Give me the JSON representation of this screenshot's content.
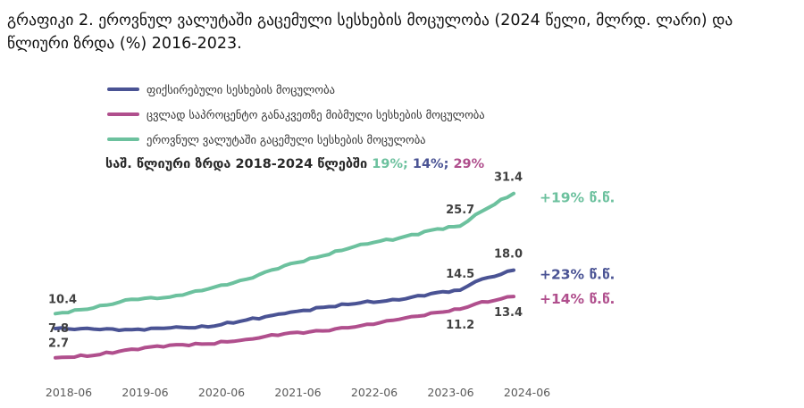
{
  "title": "გრაფიკი 2. ეროვნულ ვალუტაში გაცემული სესხების მოცულობა (2024 წელი, მლრდ. ლარი) და წლიური ზრდა (%) 2016-2023.",
  "cagr": {
    "prefix": "საშ. წლიური ზრდა 2018-2024 წლებში",
    "values": [
      "19%;",
      "14%;",
      "29%"
    ],
    "colors": [
      "#6cc19e",
      "#4a5394",
      "#b04f8d"
    ]
  },
  "chart_data": {
    "type": "line",
    "title": "",
    "xlabel": "",
    "ylabel": "",
    "x_ticks": [
      "2018-06",
      "2019-06",
      "2020-06",
      "2021-06",
      "2022-06",
      "2023-06",
      "2024-06"
    ],
    "x_range": [
      2018.5,
      2024.5
    ],
    "ylim": [
      0,
      34
    ],
    "series": [
      {
        "name": "ფიქსირებული სესხების მოცულობა",
        "color": "#4a5394",
        "x": [
          2018.5,
          2019.0,
          2019.5,
          2020.0,
          2020.5,
          2021.0,
          2021.5,
          2022.0,
          2022.5,
          2023.0,
          2023.5,
          2023.8,
          2024.0,
          2024.5
        ],
        "values": [
          7.8,
          7.7,
          7.6,
          7.9,
          8.1,
          9.3,
          10.4,
          11.5,
          12.3,
          12.8,
          14.1,
          14.5,
          16.0,
          18.0
        ],
        "labels": [
          {
            "x": 2018.5,
            "text": "7.8",
            "pos": "below-left"
          },
          {
            "x": 2023.8,
            "text": "14.5",
            "pos": "above"
          },
          {
            "x": 2024.5,
            "text": "18.0",
            "pos": "above"
          }
        ],
        "growth": "+23% წ.წ."
      },
      {
        "name": "ცვლად საპროცენტო განაკვეთზე მიბმული სესხების მოცულობა",
        "color": "#b04f8d",
        "x": [
          2018.5,
          2019.0,
          2019.5,
          2020.0,
          2020.5,
          2021.0,
          2021.5,
          2022.0,
          2022.5,
          2023.0,
          2023.5,
          2023.8,
          2024.0,
          2024.5
        ],
        "values": [
          2.7,
          3.1,
          4.2,
          4.9,
          5.1,
          5.9,
          6.9,
          7.4,
          8.3,
          9.4,
          10.6,
          11.2,
          12.1,
          13.4
        ],
        "labels": [
          {
            "x": 2018.5,
            "text": "2.7",
            "pos": "above-left"
          },
          {
            "x": 2023.8,
            "text": "11.2",
            "pos": "below"
          },
          {
            "x": 2024.5,
            "text": "13.4",
            "pos": "below"
          }
        ],
        "growth": "+14% წ.წ."
      },
      {
        "name": "ეროვნულ ვალუტაში გაცემული სესხების მოცულობა",
        "color": "#6cc19e",
        "x": [
          2018.5,
          2019.0,
          2019.5,
          2020.0,
          2020.5,
          2021.0,
          2021.5,
          2022.0,
          2022.5,
          2023.0,
          2023.5,
          2023.8,
          2024.0,
          2024.5
        ],
        "values": [
          10.4,
          11.4,
          12.9,
          13.3,
          14.7,
          16.4,
          18.8,
          20.5,
          22.5,
          23.6,
          25.2,
          25.7,
          27.7,
          31.4
        ],
        "labels": [
          {
            "x": 2018.5,
            "text": "10.4",
            "pos": "above-left"
          },
          {
            "x": 2023.8,
            "text": "25.7",
            "pos": "above"
          },
          {
            "x": 2024.5,
            "text": "31.4",
            "pos": "above"
          }
        ],
        "growth": "+19% წ.წ."
      }
    ]
  }
}
